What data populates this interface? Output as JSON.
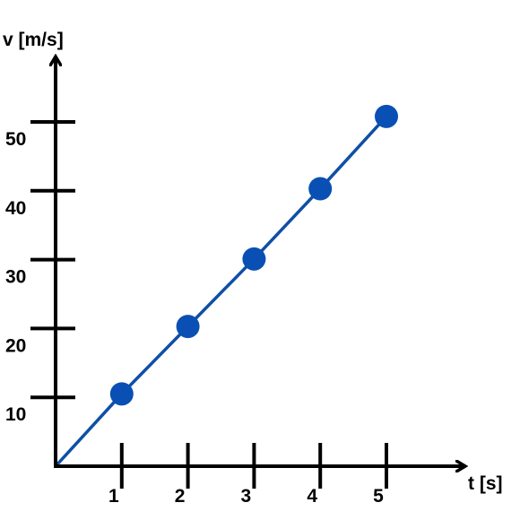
{
  "chart_data": {
    "type": "line",
    "title": "",
    "xlabel": "t [s]",
    "ylabel": "v [m/s]",
    "xlim": [
      0,
      5.9
    ],
    "ylim": [
      0,
      60
    ],
    "x_ticks": [
      1,
      2,
      3,
      4,
      5
    ],
    "x_tick_labels": [
      "1",
      "2",
      "3",
      "4",
      "5"
    ],
    "y_ticks": [
      10,
      20,
      30,
      40,
      50
    ],
    "y_tick_labels": [
      "10",
      "20",
      "30",
      "40",
      "50"
    ],
    "grid": false,
    "legend": "none",
    "line_starts_at_origin": true,
    "series": [
      {
        "x": [
          1,
          2,
          3,
          4,
          5
        ],
        "y": [
          10.5,
          20.3,
          30.1,
          40.3,
          50.8
        ],
        "color": "#0f4fa6",
        "marker_color": "#0a50b4"
      }
    ]
  }
}
